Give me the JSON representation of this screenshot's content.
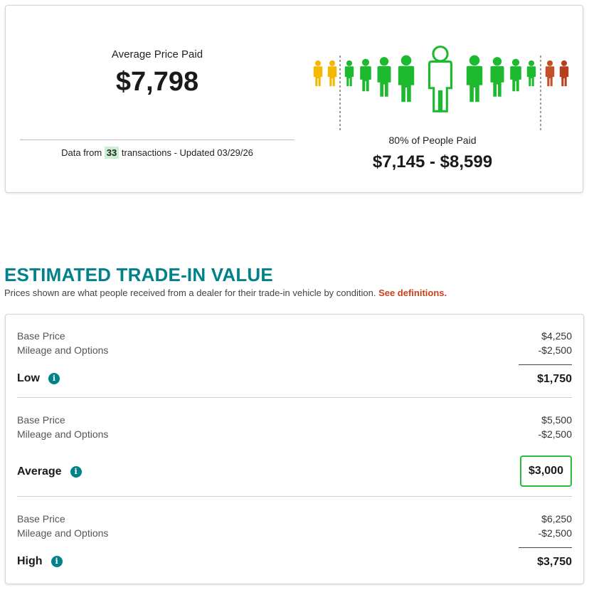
{
  "price_summary": {
    "avg_label": "Average Price Paid",
    "avg_value": "$7,798",
    "data_prefix": "Data from",
    "transaction_count": "33",
    "data_suffix": "transactions - Updated 03/29/26",
    "pct_label": "80% of People Paid",
    "range_value": "$7,145 - $8,599",
    "colors": {
      "low": "#f5b800",
      "mid": "#1db92e",
      "high": "#b5401d",
      "high_alt": "#c4502a"
    }
  },
  "trade_in": {
    "title": "ESTIMATED TRADE-IN VALUE",
    "subtitle": "Prices shown are what people received from a dealer for their trade-in vehicle by condition.",
    "definitions_link": "See definitions.",
    "tiers": [
      {
        "base_label": "Base Price",
        "base_value": "$4,250",
        "mileage_label": "Mileage and Options",
        "mileage_value": "-$2,500",
        "name": "Low",
        "total": "$1,750"
      },
      {
        "base_label": "Base Price",
        "base_value": "$5,500",
        "mileage_label": "Mileage and Options",
        "mileage_value": "-$2,500",
        "name": "Average",
        "total": "$3,000"
      },
      {
        "base_label": "Base Price",
        "base_value": "$6,250",
        "mileage_label": "Mileage and Options",
        "mileage_value": "-$2,500",
        "name": "High",
        "total": "$3,750"
      }
    ],
    "accent_color": "#00828a",
    "highlight_color": "#2bbb3a"
  }
}
